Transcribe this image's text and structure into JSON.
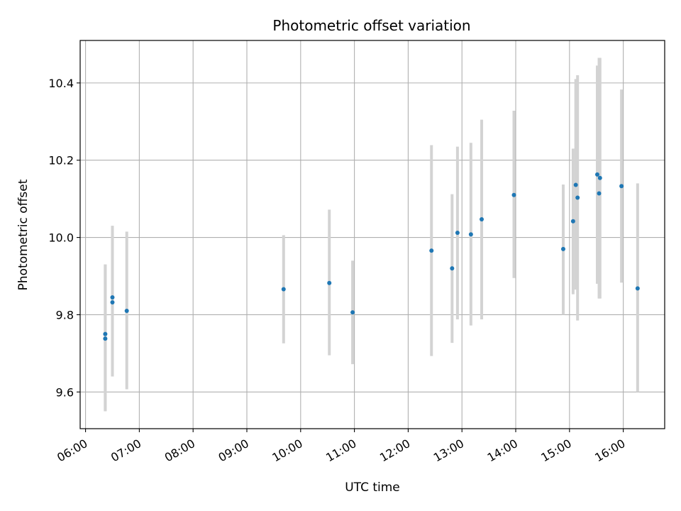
{
  "chart_data": {
    "type": "scatter",
    "title": "Photometric offset variation",
    "xlabel": "UTC time",
    "ylabel": "Photometric offset",
    "grid": true,
    "xlim_hours": [
      5.9,
      16.77
    ],
    "ylim": [
      9.505,
      10.51
    ],
    "x_ticks": [
      "06:00",
      "07:00",
      "08:00",
      "09:00",
      "10:00",
      "11:00",
      "12:00",
      "13:00",
      "14:00",
      "15:00",
      "16:00"
    ],
    "y_ticks": [
      "9.6",
      "9.8",
      "10.0",
      "10.2",
      "10.4"
    ],
    "colors": {
      "point": "#1f77b4",
      "errorbar": "#d3d3d3",
      "grid": "#b0b0b0"
    },
    "points": [
      {
        "x": "06:22",
        "y": 9.75,
        "ymin": 9.55,
        "ymax": 9.93
      },
      {
        "x": "06:22",
        "y": 9.738,
        "ymin": 9.55,
        "ymax": 9.93
      },
      {
        "x": "06:30",
        "y": 9.845,
        "ymin": 9.64,
        "ymax": 10.03
      },
      {
        "x": "06:30",
        "y": 9.832,
        "ymin": 9.64,
        "ymax": 10.03
      },
      {
        "x": "06:46",
        "y": 9.81,
        "ymin": 9.607,
        "ymax": 10.015
      },
      {
        "x": "09:41",
        "y": 9.866,
        "ymin": 9.726,
        "ymax": 10.006
      },
      {
        "x": "10:32",
        "y": 9.882,
        "ymin": 9.695,
        "ymax": 10.072
      },
      {
        "x": "10:58",
        "y": 9.806,
        "ymin": 9.672,
        "ymax": 9.94
      },
      {
        "x": "12:26",
        "y": 9.966,
        "ymin": 9.693,
        "ymax": 10.239
      },
      {
        "x": "12:49",
        "y": 9.92,
        "ymin": 9.727,
        "ymax": 10.112
      },
      {
        "x": "12:55",
        "y": 10.012,
        "ymin": 9.788,
        "ymax": 10.235
      },
      {
        "x": "13:10",
        "y": 10.008,
        "ymin": 9.772,
        "ymax": 10.245
      },
      {
        "x": "13:22",
        "y": 10.047,
        "ymin": 9.788,
        "ymax": 10.305
      },
      {
        "x": "13:58",
        "y": 10.11,
        "ymin": 9.895,
        "ymax": 10.328
      },
      {
        "x": "14:53",
        "y": 9.97,
        "ymin": 9.8,
        "ymax": 10.137
      },
      {
        "x": "15:04",
        "y": 10.042,
        "ymin": 9.853,
        "ymax": 10.23
      },
      {
        "x": "15:07",
        "y": 10.136,
        "ymin": 9.865,
        "ymax": 10.41
      },
      {
        "x": "15:09",
        "y": 10.103,
        "ymin": 9.785,
        "ymax": 10.42
      },
      {
        "x": "15:31",
        "y": 10.163,
        "ymin": 9.88,
        "ymax": 10.445
      },
      {
        "x": "15:33",
        "y": 10.114,
        "ymin": 9.842,
        "ymax": 10.465
      },
      {
        "x": "15:34",
        "y": 10.154,
        "ymin": 9.842,
        "ymax": 10.465
      },
      {
        "x": "15:58",
        "y": 10.133,
        "ymin": 9.883,
        "ymax": 10.383
      },
      {
        "x": "16:16",
        "y": 9.868,
        "ymin": 9.6,
        "ymax": 10.14
      }
    ]
  }
}
